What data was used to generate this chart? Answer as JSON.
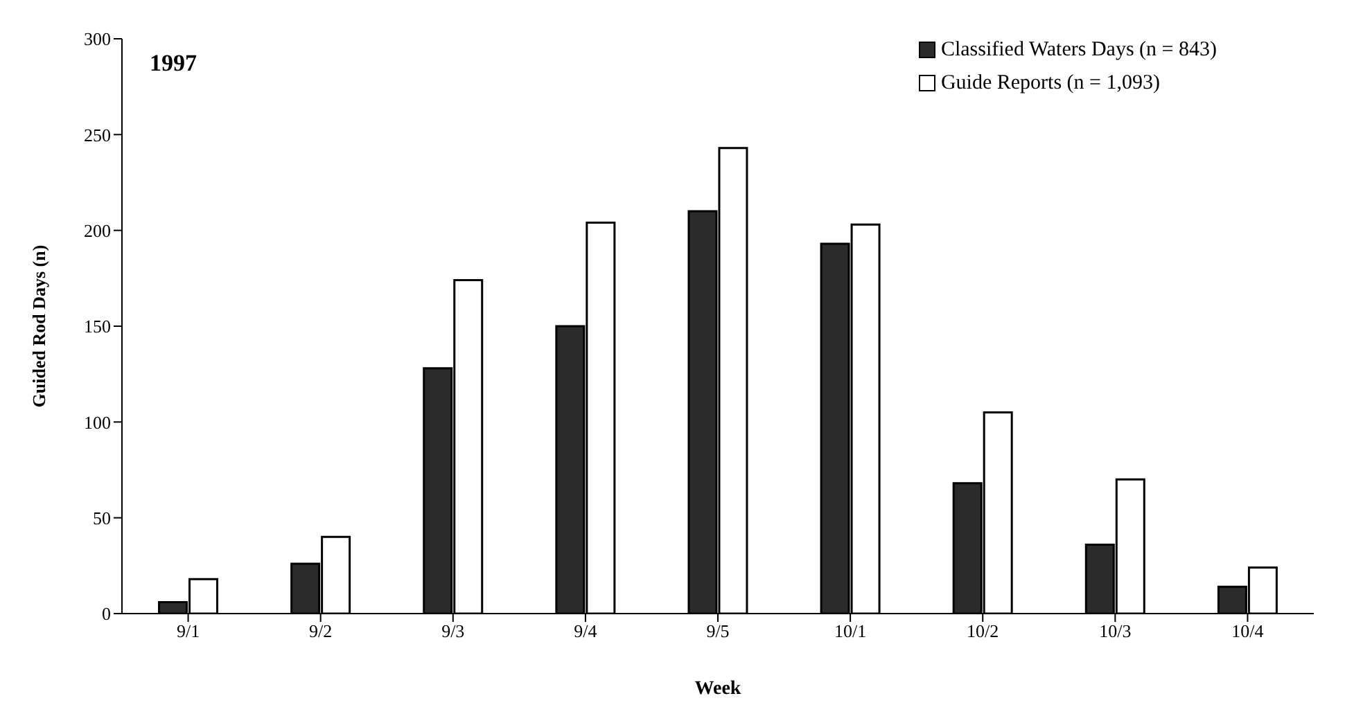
{
  "chart_data": {
    "type": "bar",
    "title": "1997",
    "xlabel": "Week",
    "ylabel": "Guided Rod Days (n)",
    "categories": [
      "9/1",
      "9/2",
      "9/3",
      "9/4",
      "9/5",
      "10/1",
      "10/2",
      "10/3",
      "10/4"
    ],
    "series": [
      {
        "name": "Classified Waters Days (n = 843)",
        "color": "#2b2b2b",
        "values": [
          6,
          26,
          128,
          150,
          210,
          193,
          68,
          36,
          14
        ]
      },
      {
        "name": "Guide Reports (n = 1,093)",
        "color": "#ffffff",
        "values": [
          18,
          40,
          174,
          204,
          243,
          203,
          105,
          70,
          24
        ]
      }
    ],
    "ylim": [
      0,
      300
    ],
    "yticks": [
      0,
      50,
      100,
      150,
      200,
      250,
      300
    ],
    "legend": "top right"
  }
}
